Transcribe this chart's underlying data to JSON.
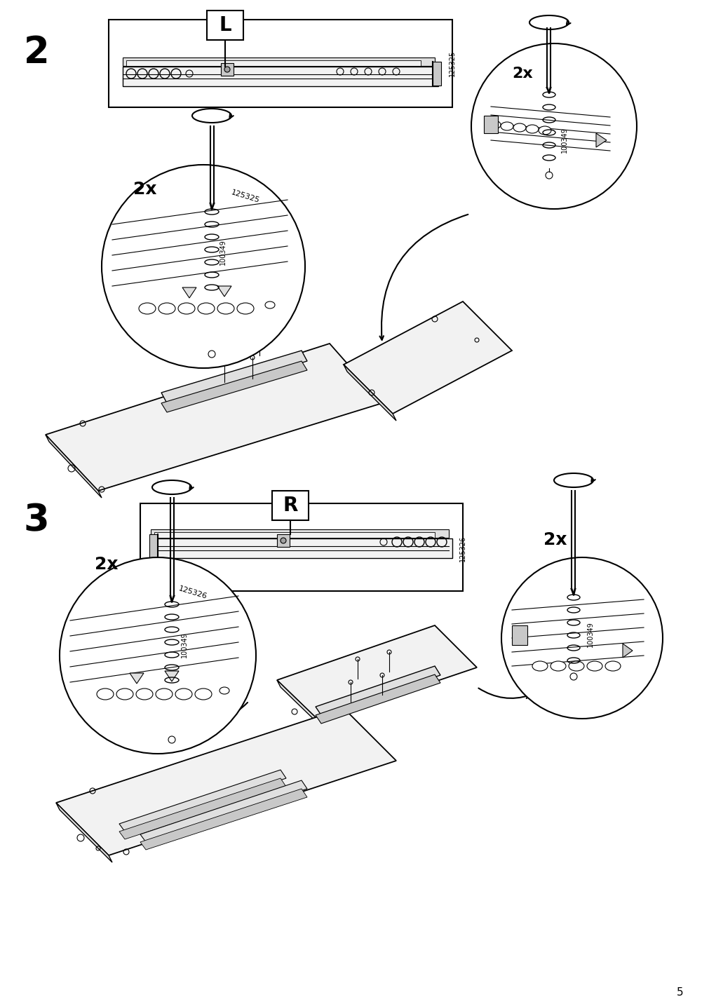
{
  "page_number": "5",
  "step2_label": "2",
  "step3_label": "3",
  "part_L_label": "L",
  "part_R_label": "R",
  "part_num_L": "125325",
  "part_num_R": "125326",
  "screw_num": "100349",
  "qty_2x": "2x",
  "bg_color": "#ffffff",
  "line_color": "#000000",
  "step_label_fontsize": 38,
  "part_label_fontsize": 20,
  "qty_fontsize": 16,
  "partnum_fontsize": 8,
  "page_num_fontsize": 11,
  "gray1": "#f2f2f2",
  "gray2": "#e0e0e0",
  "gray3": "#c8c8c8",
  "gray4": "#a0a0a0"
}
